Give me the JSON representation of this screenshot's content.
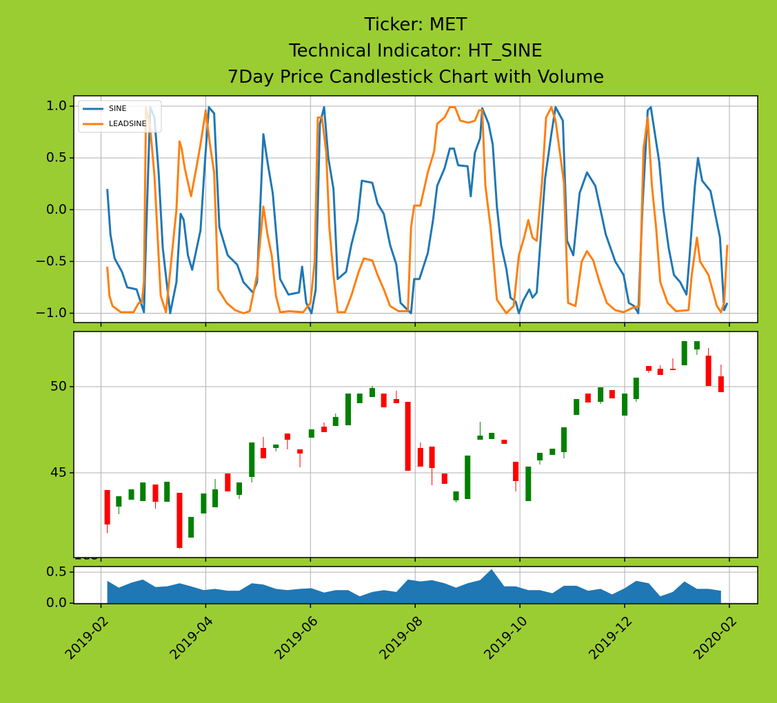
{
  "chart_data": [
    {
      "type": "line",
      "title": [
        "Ticker: MET",
        "Technical Indicator: HT_SINE",
        "7Day Price Candlestick Chart with Volume"
      ],
      "ylim": [
        -1.09,
        1.1
      ],
      "yticks": [
        {
          "value": -1.0,
          "label": "−1.0"
        },
        {
          "value": -0.5,
          "label": "−0.5"
        },
        {
          "value": 0.0,
          "label": "0.0"
        },
        {
          "value": 0.5,
          "label": "0.5"
        },
        {
          "value": 1.0,
          "label": "1.0"
        }
      ],
      "grid": true,
      "legend": "upper left",
      "series": [
        {
          "name": "SINE",
          "color": "#1f77b4",
          "x": [
            1.06,
            1.09,
            1.13,
            1.2,
            1.25,
            1.34,
            1.41,
            1.43,
            1.47,
            1.51,
            1.55,
            1.59,
            1.66,
            1.72,
            1.76,
            1.79,
            1.83,
            1.87,
            1.95,
            1.99,
            2.03,
            2.08,
            2.13,
            2.21,
            2.3,
            2.36,
            2.45,
            2.49,
            2.55,
            2.59,
            2.64,
            2.71,
            2.79,
            2.89,
            2.92,
            2.96,
            3.01,
            3.05,
            3.09,
            3.13,
            3.17,
            3.22,
            3.26,
            3.34,
            3.39,
            3.45,
            3.49,
            3.59,
            3.64,
            3.7,
            3.76,
            3.82,
            3.86,
            3.93,
            3.96,
            3.99,
            4.04,
            4.12,
            4.17,
            4.21,
            4.28,
            4.33,
            4.37,
            4.41,
            4.5,
            4.53,
            4.57,
            4.62,
            4.64,
            4.7,
            4.74,
            4.78,
            4.82,
            4.87,
            4.91,
            4.96,
            4.99,
            5.03,
            5.09,
            5.12,
            5.16,
            5.24,
            5.3,
            5.34,
            5.41,
            5.45,
            5.51,
            5.57,
            5.64,
            5.72,
            5.82,
            5.91,
            5.99,
            6.04,
            6.09,
            6.13,
            6.17,
            6.22,
            6.25,
            6.33,
            6.37,
            6.42,
            6.47,
            6.53,
            6.59,
            6.62,
            6.67,
            6.7,
            6.74,
            6.82,
            6.91,
            6.95,
            6.98
          ],
          "values": [
            0.2,
            -0.24,
            -0.47,
            -0.6,
            -0.75,
            -0.77,
            -0.99,
            -0.27,
            0.99,
            0.89,
            0.36,
            -0.37,
            -1.0,
            -0.7,
            -0.04,
            -0.1,
            -0.44,
            -0.58,
            -0.2,
            0.43,
            0.99,
            0.93,
            -0.17,
            -0.44,
            -0.53,
            -0.7,
            -0.8,
            -0.7,
            0.73,
            0.46,
            0.16,
            -0.67,
            -0.82,
            -0.8,
            -0.55,
            -0.9,
            -1.0,
            -0.77,
            0.83,
            0.99,
            0.5,
            0.2,
            -0.67,
            -0.6,
            -0.34,
            -0.1,
            0.28,
            0.26,
            0.06,
            -0.04,
            -0.34,
            -0.53,
            -0.9,
            -0.97,
            -1.0,
            -0.67,
            -0.67,
            -0.42,
            -0.1,
            0.23,
            0.4,
            0.59,
            0.59,
            0.43,
            0.42,
            0.13,
            0.55,
            0.69,
            0.98,
            0.83,
            0.63,
            0.03,
            -0.34,
            -0.57,
            -0.85,
            -0.89,
            -1.0,
            -0.88,
            -0.77,
            -0.85,
            -0.8,
            0.3,
            0.73,
            0.99,
            0.86,
            -0.3,
            -0.44,
            0.16,
            0.36,
            0.23,
            -0.24,
            -0.5,
            -0.63,
            -0.9,
            -0.93,
            -1.0,
            0.03,
            0.96,
            0.99,
            0.46,
            0.0,
            -0.37,
            -0.63,
            -0.7,
            -0.82,
            -0.44,
            0.23,
            0.5,
            0.28,
            0.18,
            -0.27,
            -0.97,
            -0.9
          ]
        },
        {
          "name": "LEADSINE",
          "color": "#ff7f0e",
          "x": [
            1.06,
            1.08,
            1.11,
            1.19,
            1.31,
            1.36,
            1.39,
            1.41,
            1.43,
            1.47,
            1.51,
            1.57,
            1.62,
            1.67,
            1.72,
            1.75,
            1.77,
            1.8,
            1.86,
            1.91,
            1.95,
            2.0,
            2.04,
            2.08,
            2.12,
            2.2,
            2.28,
            2.36,
            2.42,
            2.49,
            2.55,
            2.59,
            2.63,
            2.67,
            2.71,
            2.8,
            2.93,
            3.0,
            3.04,
            3.07,
            3.11,
            3.15,
            3.18,
            3.22,
            3.26,
            3.33,
            3.39,
            3.46,
            3.51,
            3.59,
            3.64,
            3.7,
            3.76,
            3.84,
            3.93,
            3.96,
            3.99,
            4.05,
            4.12,
            4.18,
            4.21,
            4.28,
            4.33,
            4.38,
            4.43,
            4.51,
            4.57,
            4.61,
            4.64,
            4.67,
            4.72,
            4.78,
            4.87,
            4.94,
            4.99,
            5.04,
            5.08,
            5.12,
            5.16,
            5.21,
            5.25,
            5.3,
            5.34,
            5.42,
            5.46,
            5.53,
            5.59,
            5.64,
            5.7,
            5.76,
            5.83,
            5.91,
            5.99,
            6.07,
            6.14,
            6.18,
            6.22,
            6.26,
            6.3,
            6.34,
            6.41,
            6.49,
            6.61,
            6.64,
            6.69,
            6.72,
            6.8,
            6.88,
            6.92,
            6.95,
            6.98
          ],
          "values": [
            -0.55,
            -0.83,
            -0.93,
            -0.99,
            -0.99,
            -0.9,
            -0.9,
            -0.7,
            0.99,
            0.79,
            0.33,
            -0.83,
            -0.99,
            -0.5,
            0.0,
            0.66,
            0.59,
            0.4,
            0.13,
            0.4,
            0.63,
            0.96,
            0.63,
            0.36,
            -0.77,
            -0.9,
            -0.97,
            -1.0,
            -0.98,
            -0.63,
            0.03,
            -0.24,
            -0.44,
            -0.83,
            -0.99,
            -0.98,
            -0.99,
            -0.9,
            -0.5,
            0.89,
            0.89,
            0.56,
            -0.17,
            -0.63,
            -0.99,
            -0.99,
            -0.83,
            -0.6,
            -0.47,
            -0.49,
            -0.63,
            -0.77,
            -0.93,
            -0.98,
            -0.98,
            -0.17,
            0.04,
            0.04,
            0.36,
            0.56,
            0.83,
            0.89,
            0.99,
            0.99,
            0.86,
            0.84,
            0.86,
            0.96,
            0.96,
            0.23,
            -0.17,
            -0.87,
            -1.0,
            -0.93,
            -0.44,
            -0.27,
            -0.1,
            -0.27,
            -0.3,
            0.26,
            0.89,
            0.99,
            0.86,
            0.26,
            -0.9,
            -0.93,
            -0.5,
            -0.4,
            -0.49,
            -0.7,
            -0.9,
            -0.97,
            -0.99,
            -0.95,
            -0.93,
            0.59,
            0.89,
            0.23,
            -0.17,
            -0.7,
            -0.9,
            -0.98,
            -0.97,
            -0.63,
            -0.27,
            -0.5,
            -0.63,
            -0.93,
            -0.99,
            -0.9,
            -0.34
          ]
        }
      ]
    },
    {
      "type": "candlestick",
      "ylim": [
        40.08,
        53.2
      ],
      "yticks": [
        45,
        50
      ],
      "grid": true,
      "up_color": "green",
      "down_color": "red",
      "x": [
        1.06,
        1.17,
        1.29,
        1.4,
        1.52,
        1.63,
        1.75,
        1.86,
        1.98,
        2.09,
        2.21,
        2.32,
        2.44,
        2.55,
        2.67,
        2.78,
        2.9,
        3.01,
        3.13,
        3.24,
        3.36,
        3.47,
        3.59,
        3.7,
        3.82,
        3.93,
        4.05,
        4.16,
        4.28,
        4.39,
        4.5,
        4.62,
        4.73,
        4.85,
        4.96,
        5.08,
        5.19,
        5.31,
        5.42,
        5.54,
        5.65,
        5.77,
        5.88,
        6.0,
        6.11,
        6.23,
        6.34,
        6.46,
        6.57,
        6.69,
        6.8,
        6.92
      ],
      "open": [
        44.0,
        43.04,
        43.44,
        43.36,
        44.32,
        43.32,
        43.84,
        41.24,
        42.64,
        43.0,
        44.96,
        43.72,
        44.76,
        46.44,
        46.44,
        47.28,
        46.36,
        47.04,
        47.68,
        47.72,
        47.76,
        49.04,
        49.4,
        49.6,
        49.28,
        49.12,
        46.44,
        46.52,
        44.96,
        43.4,
        43.48,
        46.92,
        46.96,
        46.92,
        45.64,
        43.36,
        45.72,
        46.04,
        46.2,
        48.36,
        49.6,
        49.12,
        49.8,
        48.32,
        49.28,
        51.2,
        51.04,
        51.04,
        51.24,
        52.16,
        51.8,
        50.6
      ],
      "high": [
        44.0,
        43.64,
        44.04,
        44.44,
        44.32,
        44.48,
        43.84,
        42.44,
        43.8,
        44.64,
        44.96,
        44.44,
        46.76,
        47.08,
        46.64,
        47.28,
        46.36,
        47.52,
        47.92,
        48.44,
        49.6,
        49.6,
        50.04,
        49.6,
        49.76,
        49.12,
        46.76,
        46.52,
        44.96,
        43.92,
        46.0,
        47.96,
        47.32,
        46.92,
        45.64,
        45.36,
        46.16,
        46.4,
        47.64,
        49.28,
        49.6,
        49.96,
        49.8,
        49.6,
        50.52,
        51.2,
        51.24,
        51.64,
        52.64,
        52.64,
        52.24,
        51.28
      ],
      "low": [
        41.5,
        42.6,
        43.44,
        43.36,
        42.92,
        43.32,
        40.6,
        41.24,
        42.64,
        43.0,
        43.92,
        43.48,
        44.44,
        45.84,
        46.24,
        46.36,
        45.32,
        47.04,
        47.36,
        47.72,
        47.76,
        49.04,
        49.4,
        48.8,
        49.04,
        45.12,
        45.36,
        44.28,
        44.36,
        43.28,
        43.48,
        46.92,
        46.96,
        46.68,
        43.92,
        43.36,
        45.48,
        46.04,
        45.84,
        48.36,
        49.08,
        49.0,
        49.32,
        48.32,
        49.12,
        50.8,
        50.68,
        50.96,
        51.24,
        51.84,
        50.04,
        49.68
      ],
      "close": [
        42.0,
        43.64,
        44.04,
        44.44,
        43.32,
        44.48,
        40.64,
        42.44,
        43.8,
        44.04,
        43.92,
        44.44,
        46.76,
        45.84,
        46.64,
        46.92,
        46.12,
        47.52,
        47.36,
        48.24,
        49.6,
        49.6,
        49.92,
        48.8,
        49.04,
        45.12,
        45.36,
        45.28,
        44.36,
        43.92,
        46.0,
        47.16,
        47.32,
        46.68,
        44.52,
        45.36,
        46.16,
        46.4,
        47.64,
        49.28,
        49.08,
        49.96,
        49.32,
        49.6,
        50.52,
        50.92,
        50.68,
        50.96,
        52.64,
        52.64,
        50.04,
        49.68
      ]
    },
    {
      "type": "area",
      "color": "#1f77b4",
      "offset_text": "1e8",
      "ylim": [
        -0.01,
        0.59
      ],
      "yticks": [
        {
          "value": 0.0,
          "label": "0.0"
        },
        {
          "value": 0.5,
          "label": "0.5"
        }
      ],
      "grid": true,
      "xlim": [
        0.74,
        7.27
      ],
      "xticks": [
        {
          "value": 1,
          "label": "2019-02"
        },
        {
          "value": 2,
          "label": "2019-04"
        },
        {
          "value": 3,
          "label": "2019-06"
        },
        {
          "value": 4,
          "label": "2019-08"
        },
        {
          "value": 5,
          "label": "2019-10"
        },
        {
          "value": 6,
          "label": "2019-12"
        },
        {
          "value": 7,
          "label": "2020-02"
        }
      ],
      "x": [
        1.06,
        1.17,
        1.29,
        1.4,
        1.52,
        1.63,
        1.75,
        1.86,
        1.98,
        2.09,
        2.21,
        2.32,
        2.44,
        2.55,
        2.67,
        2.78,
        2.9,
        3.01,
        3.13,
        3.24,
        3.36,
        3.47,
        3.59,
        3.7,
        3.82,
        3.93,
        4.05,
        4.16,
        4.28,
        4.39,
        4.5,
        4.62,
        4.73,
        4.85,
        4.96,
        5.08,
        5.19,
        5.31,
        5.42,
        5.54,
        5.65,
        5.77,
        5.88,
        6.0,
        6.11,
        6.23,
        6.34,
        6.46,
        6.57,
        6.69,
        6.8,
        6.92
      ],
      "values": [
        0.36,
        0.25,
        0.33,
        0.38,
        0.26,
        0.27,
        0.32,
        0.27,
        0.21,
        0.23,
        0.2,
        0.2,
        0.32,
        0.3,
        0.23,
        0.21,
        0.23,
        0.24,
        0.17,
        0.21,
        0.21,
        0.11,
        0.18,
        0.21,
        0.18,
        0.38,
        0.35,
        0.37,
        0.32,
        0.25,
        0.32,
        0.37,
        0.55,
        0.27,
        0.27,
        0.21,
        0.21,
        0.16,
        0.28,
        0.28,
        0.2,
        0.23,
        0.14,
        0.24,
        0.36,
        0.32,
        0.11,
        0.18,
        0.35,
        0.23,
        0.23,
        0.2
      ]
    }
  ]
}
